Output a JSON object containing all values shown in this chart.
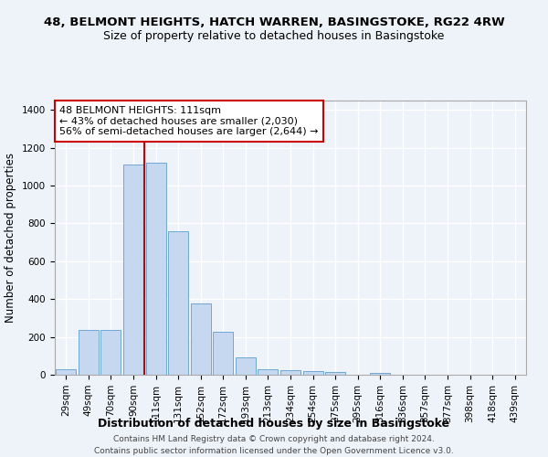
{
  "title": "48, BELMONT HEIGHTS, HATCH WARREN, BASINGSTOKE, RG22 4RW",
  "subtitle": "Size of property relative to detached houses in Basingstoke",
  "xlabel": "Distribution of detached houses by size in Basingstoke",
  "ylabel": "Number of detached properties",
  "categories": [
    "29sqm",
    "49sqm",
    "70sqm",
    "90sqm",
    "111sqm",
    "131sqm",
    "152sqm",
    "172sqm",
    "193sqm",
    "213sqm",
    "234sqm",
    "254sqm",
    "275sqm",
    "295sqm",
    "316sqm",
    "336sqm",
    "357sqm",
    "377sqm",
    "398sqm",
    "418sqm",
    "439sqm"
  ],
  "values": [
    30,
    235,
    235,
    1110,
    1120,
    760,
    375,
    225,
    90,
    30,
    25,
    20,
    15,
    0,
    10,
    0,
    0,
    0,
    0,
    0,
    0
  ],
  "bar_color": "#c5d8f0",
  "bar_edge_color": "#6fa8d4",
  "vline_color": "#cc0000",
  "annotation_text": "48 BELMONT HEIGHTS: 111sqm\n← 43% of detached houses are smaller (2,030)\n56% of semi-detached houses are larger (2,644) →",
  "annotation_box_color": "#ffffff",
  "annotation_box_edge": "#cc0000",
  "ylim": [
    0,
    1450
  ],
  "background_color": "#eef2f9",
  "grid_color": "#ffffff",
  "footer_line1": "Contains HM Land Registry data © Crown copyright and database right 2024.",
  "footer_line2": "Contains public sector information licensed under the Open Government Licence v3.0.",
  "title_fontsize": 9.5,
  "subtitle_fontsize": 9,
  "ylabel_fontsize": 8.5,
  "xlabel_fontsize": 9,
  "tick_fontsize": 7.5,
  "annotation_fontsize": 8,
  "footer_fontsize": 6.5
}
